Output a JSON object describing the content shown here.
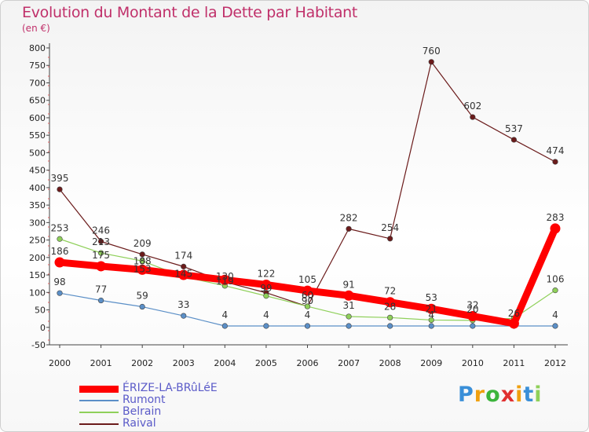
{
  "chart_data": {
    "type": "line",
    "title": "Evolution du Montant de la Dette par Habitant",
    "unit_label": "(en €)",
    "x": [
      "2000",
      "2001",
      "2002",
      "2003",
      "2004",
      "2005",
      "2006",
      "2007",
      "2008",
      "2009",
      "2010",
      "2011",
      "2012"
    ],
    "ylim": [
      -50,
      800
    ],
    "yticks": [
      -50,
      0,
      50,
      100,
      150,
      200,
      250,
      300,
      350,
      400,
      450,
      500,
      550,
      600,
      650,
      700,
      750,
      800
    ],
    "grid": false,
    "legend_position": "bottom-left",
    "series": [
      {
        "name": "ÉRIZE-LA-BRûLéE",
        "color": "#ff0000",
        "values": [
          186,
          175,
          165,
          150,
          136,
          122,
          105,
          91,
          72,
          53,
          32,
          11,
          283
        ],
        "labels": [
          "186",
          "175",
          "",
          "",
          "",
          "122",
          "105",
          "91",
          "72",
          "53",
          "32",
          "",
          "283"
        ]
      },
      {
        "name": "Rumont",
        "color": "#5b8fc7",
        "values": [
          98,
          77,
          59,
          33,
          4,
          4,
          4,
          4,
          4,
          4,
          4,
          4,
          4
        ],
        "labels": [
          "98",
          "77",
          "59",
          "33",
          "4",
          "4",
          "4",
          "",
          "",
          "4",
          "",
          "",
          "4"
        ]
      },
      {
        "name": "Belrain",
        "color": "#8fd05a",
        "values": [
          253,
          213,
          190,
          145,
          119,
          90,
          60,
          31,
          28,
          21,
          20,
          26,
          106
        ],
        "labels": [
          "253",
          "213",
          "",
          "",
          "",
          "",
          "",
          "31",
          "28",
          "21",
          "20",
          "",
          "106"
        ]
      },
      {
        "name": "Raival",
        "color": "#6b1b1b",
        "values": [
          395,
          246,
          209,
          174,
          130,
          99,
          60,
          282,
          254,
          760,
          602,
          537,
          474
        ],
        "labels": [
          "395",
          "246",
          "209",
          "174",
          "",
          "",
          "60",
          "282",
          "254",
          "760",
          "602",
          "537",
          "474"
        ]
      }
    ],
    "overlap_labels": [
      "188",
      "153",
      "145",
      "130",
      "119",
      "99",
      "90",
      "26"
    ]
  },
  "logo": {
    "letters": [
      "P",
      "r",
      "o",
      "x",
      "i",
      "t",
      "i"
    ],
    "colors": [
      "#3a8fd8",
      "#f0a010",
      "#3cb43c",
      "#e03030",
      "#f0a010",
      "#3a8fd8",
      "#8fd05a"
    ]
  }
}
